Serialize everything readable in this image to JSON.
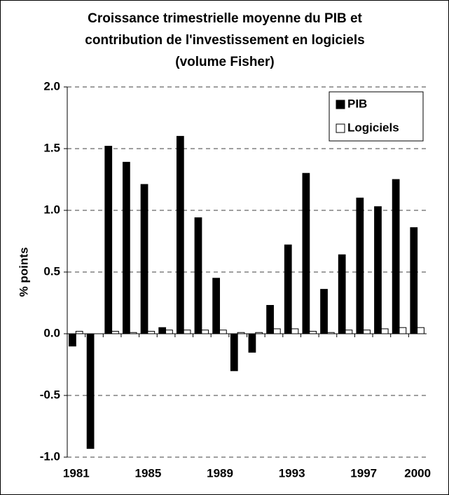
{
  "chart_data": {
    "type": "bar",
    "title": "Croissance trimestrielle moyenne du PIB et contribution de l'investissement en logiciels (volume Fisher)",
    "y_label": "% points",
    "categories": [
      "1981",
      null,
      null,
      null,
      "1985",
      null,
      null,
      null,
      "1989",
      null,
      null,
      null,
      "1993",
      null,
      null,
      null,
      "1997",
      null,
      null,
      "2000"
    ],
    "series": [
      {
        "name": "PIB",
        "color": "#000000",
        "values": [
          -0.1,
          -0.93,
          1.52,
          1.39,
          1.21,
          0.05,
          1.6,
          0.94,
          0.45,
          -0.3,
          -0.15,
          0.23,
          0.72,
          1.3,
          0.36,
          0.64,
          1.1,
          1.03,
          1.25,
          0.86
        ]
      },
      {
        "name": "Logiciels",
        "color": "#ffffff",
        "values": [
          0.02,
          0.0,
          0.02,
          0.01,
          0.02,
          0.03,
          0.03,
          0.03,
          0.03,
          0.01,
          0.01,
          0.04,
          0.04,
          0.02,
          0.01,
          0.03,
          0.03,
          0.04,
          0.05,
          0.05
        ]
      }
    ],
    "ylim": [
      -1.0,
      2.0
    ],
    "yticks": [
      {
        "value": -1,
        "label": "-1.0"
      },
      -0.5,
      {
        "value": 0,
        "label": "0.0"
      },
      0.5,
      {
        "value": 1,
        "label": "1.0"
      },
      {
        "value": 1.5,
        "label": "1.5"
      },
      {
        "value": 2,
        "label": "2.0"
      }
    ],
    "grid": true,
    "legend": "upper right"
  }
}
